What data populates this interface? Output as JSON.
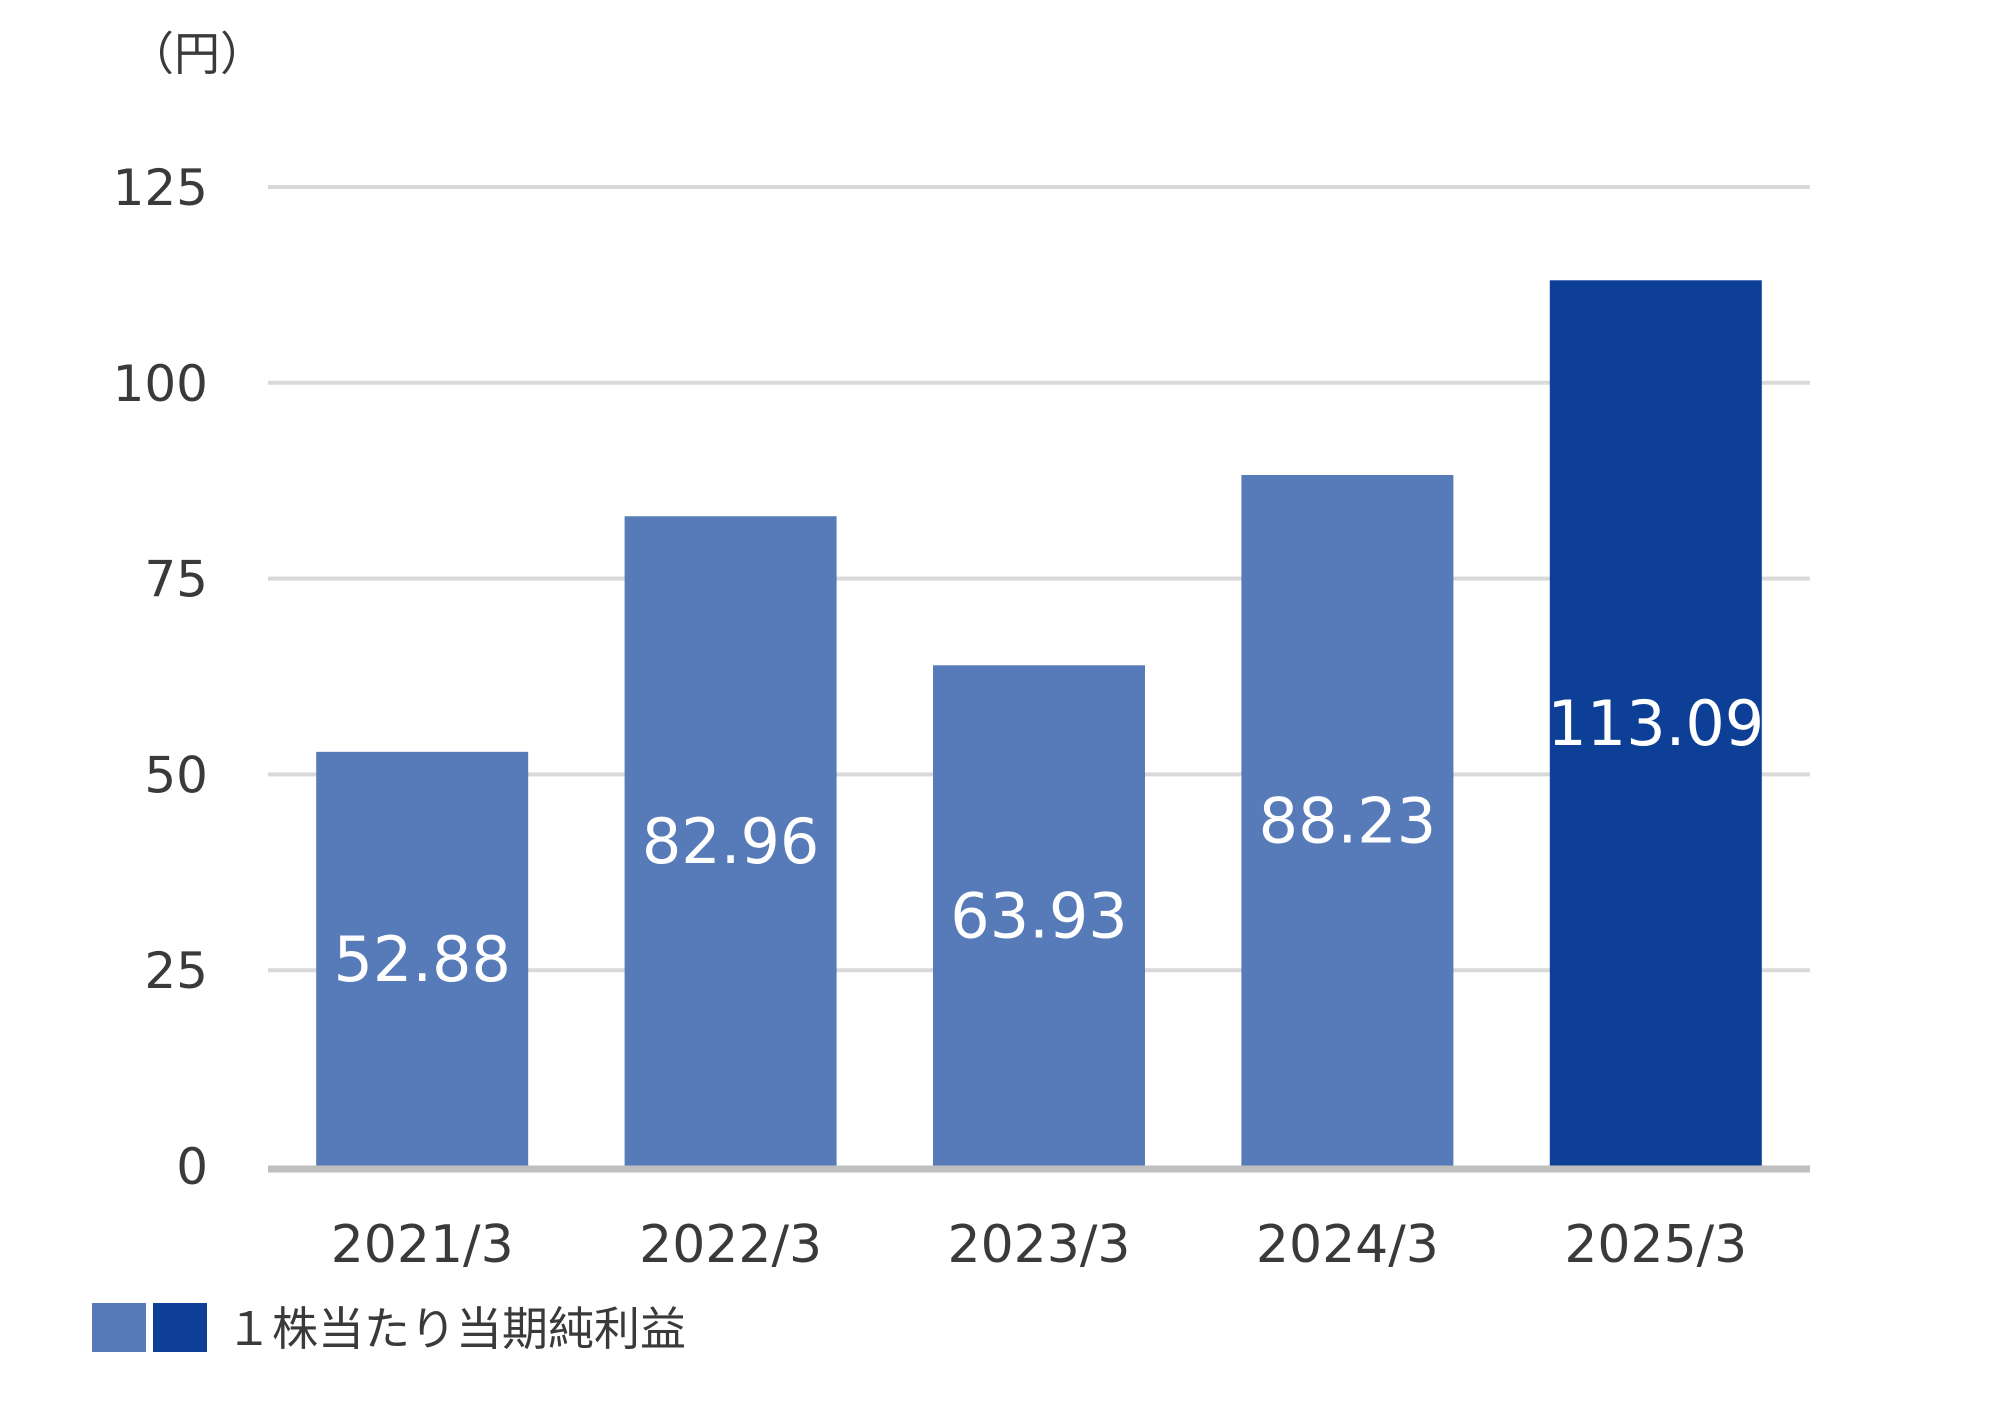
{
  "chart_data": {
    "type": "bar",
    "unit_label": "（円）",
    "categories": [
      "2021/3",
      "2022/3",
      "2023/3",
      "2024/3",
      "2025/3"
    ],
    "series": [
      {
        "name": "１株当たり当期純利益",
        "values": [
          52.88,
          82.96,
          63.93,
          88.23,
          113.09
        ],
        "data_labels": [
          "52.88",
          "82.96",
          "63.93",
          "88.23",
          "113.09"
        ]
      }
    ],
    "ylim": [
      0,
      125
    ],
    "yticks": [
      0,
      25,
      50,
      75,
      100,
      125
    ],
    "grid": true,
    "legend_position": "bottom-left",
    "colors": {
      "bar": "#577ab8",
      "bar_highlight": "#0d3f97",
      "grid": "#d9d9d9",
      "baseline": "#bfbfbf"
    }
  }
}
